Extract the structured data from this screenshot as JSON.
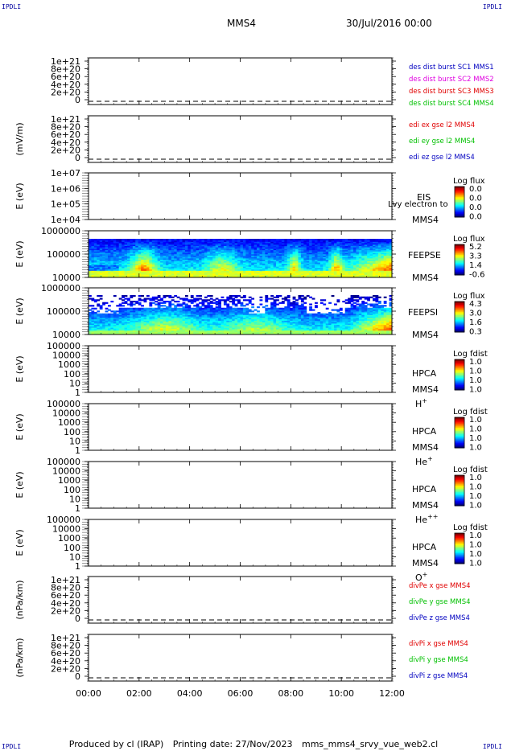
{
  "header": {
    "corner_label": "IPDLI",
    "spacecraft": "MMS4",
    "date_time": "30/Jul/2016 00:00"
  },
  "footer": {
    "produced_by": "Produced by cl (IRAP)",
    "printing_date": "Printing date: 27/Nov/2023",
    "filename": "mms_mms4_srvy_vue_web2.cl"
  },
  "colors": {
    "red": "#e00000",
    "magenta": "#e000e0",
    "green": "#00c000",
    "blue": "#0000c0"
  },
  "chart_data": [
    {
      "type": "line",
      "ylabel": "",
      "yticks": [
        "0",
        "2e+20",
        "4e+20",
        "6e+20",
        "8e+20",
        "1e+21"
      ],
      "series": [
        {
          "name": "des dist burst SC1 MMS1",
          "color": "#0000c0"
        },
        {
          "name": "des dist burst SC2 MMS2",
          "color": "#e000e0"
        },
        {
          "name": "des dist burst SC3 MMS3",
          "color": "#e00000"
        },
        {
          "name": "des dist burst SC4 MMS4",
          "color": "#00c000"
        }
      ]
    },
    {
      "type": "line",
      "ylabel": "(mV/m)",
      "yticks": [
        "0",
        "2e+20",
        "4e+20",
        "6e+20",
        "8e+20",
        "1e+21"
      ],
      "series": [
        {
          "name": "edi ex gse l2 MMS4",
          "color": "#e00000"
        },
        {
          "name": "edi ey gse l2 MMS4",
          "color": "#00c000"
        },
        {
          "name": "edi ez gse l2 MMS4",
          "color": "#0000c0"
        }
      ]
    },
    {
      "type": "heatmap",
      "ylabel": "E (eV)",
      "yticks": [
        "1e+04",
        "1e+05",
        "1e+06",
        "1e+07"
      ],
      "instrument": "EIS",
      "instrument_sub": "MMS4",
      "overlay_text": "Lvy electron to",
      "colorbar_title": "Log flux",
      "colorbar_ticks": [
        "0.0",
        "0.0",
        "0.0",
        "0.0"
      ],
      "empty": true
    },
    {
      "type": "heatmap",
      "ylabel": "E (eV)",
      "yticks": [
        "10000",
        "100000",
        "1000000"
      ],
      "instrument": "FEEPSE",
      "instrument_sub": "MMS4",
      "colorbar_title": "Log flux",
      "colorbar_ticks": [
        "5.2",
        "3.3",
        "1.4",
        "-0.6"
      ],
      "empty": false,
      "kind": "electron"
    },
    {
      "type": "heatmap",
      "ylabel": "E (eV)",
      "yticks": [
        "10000",
        "100000",
        "1000000"
      ],
      "instrument": "FEEPSI",
      "instrument_sub": "MMS4",
      "colorbar_title": "Log flux",
      "colorbar_ticks": [
        "4.3",
        "3.0",
        "1.6",
        "0.3"
      ],
      "empty": false,
      "kind": "ion"
    },
    {
      "type": "heatmap",
      "ylabel": "E (eV)",
      "yticks": [
        "1",
        "10",
        "100",
        "1000",
        "10000",
        "100000"
      ],
      "instrument": "HPCA",
      "instrument_sub": "MMS4",
      "species_base": "H",
      "species_sup": "+",
      "colorbar_title": "Log fdist",
      "colorbar_ticks": [
        "1.0",
        "1.0",
        "1.0",
        "1.0"
      ],
      "empty": true
    },
    {
      "type": "heatmap",
      "ylabel": "E (eV)",
      "yticks": [
        "1",
        "10",
        "100",
        "1000",
        "10000",
        "100000"
      ],
      "instrument": "HPCA",
      "instrument_sub": "MMS4",
      "species_base": "He",
      "species_sup": "+",
      "colorbar_title": "Log fdist",
      "colorbar_ticks": [
        "1.0",
        "1.0",
        "1.0",
        "1.0"
      ],
      "empty": true
    },
    {
      "type": "heatmap",
      "ylabel": "E (eV)",
      "yticks": [
        "1",
        "10",
        "100",
        "1000",
        "10000",
        "100000"
      ],
      "instrument": "HPCA",
      "instrument_sub": "MMS4",
      "species_base": "He",
      "species_sup": "++",
      "colorbar_title": "Log fdist",
      "colorbar_ticks": [
        "1.0",
        "1.0",
        "1.0",
        "1.0"
      ],
      "empty": true
    },
    {
      "type": "heatmap",
      "ylabel": "E (eV)",
      "yticks": [
        "1",
        "10",
        "100",
        "1000",
        "10000",
        "100000"
      ],
      "instrument": "HPCA",
      "instrument_sub": "MMS4",
      "species_base": "O",
      "species_sup": "+",
      "colorbar_title": "Log fdist",
      "colorbar_ticks": [
        "1.0",
        "1.0",
        "1.0",
        "1.0"
      ],
      "empty": true
    },
    {
      "type": "line",
      "ylabel": "(nPa/km)",
      "yticks": [
        "0",
        "2e+20",
        "4e+20",
        "6e+20",
        "8e+20",
        "1e+21"
      ],
      "series": [
        {
          "name": "divPe x gse MMS4",
          "color": "#e00000"
        },
        {
          "name": "divPe y gse MMS4",
          "color": "#00c000"
        },
        {
          "name": "divPe z gse MMS4",
          "color": "#0000c0"
        }
      ]
    },
    {
      "type": "line",
      "ylabel": "(nPa/km)",
      "yticks": [
        "0",
        "2e+20",
        "4e+20",
        "6e+20",
        "8e+20",
        "1e+21"
      ],
      "series": [
        {
          "name": "divPi x gse MMS4",
          "color": "#e00000"
        },
        {
          "name": "divPi y gse MMS4",
          "color": "#00c000"
        },
        {
          "name": "divPi z gse MMS4",
          "color": "#0000c0"
        }
      ]
    }
  ],
  "x_axis": {
    "ticks": [
      "00:00",
      "02:00",
      "04:00",
      "06:00",
      "08:00",
      "10:00",
      "12:00"
    ]
  }
}
